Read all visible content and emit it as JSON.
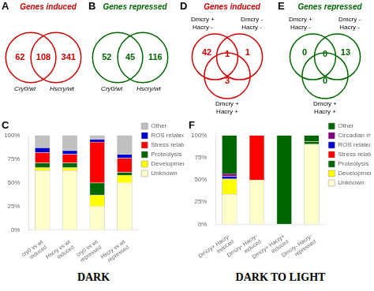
{
  "chart_data": [
    {
      "type": "venn",
      "title": "Genes induced",
      "annotations": [
        "A"
      ],
      "color": "#cc0000",
      "sets": [
        "Cry0/wt",
        "Hscry/wt"
      ],
      "values": [
        62,
        108,
        341
      ]
    },
    {
      "type": "venn",
      "title": "Genes repressed",
      "annotations": [
        "B"
      ],
      "color": "#006600",
      "sets": [
        "Cry0/wt",
        "Hscry/wt"
      ],
      "values": [
        52,
        45,
        116
      ]
    },
    {
      "type": "venn",
      "title": "Genes induced",
      "annotations": [
        "D"
      ],
      "color": "#cc0000",
      "sets": [
        "Dmcry +\nHacry -",
        "Dmcry -\nHacry -",
        "Dmcry +\nHacry +"
      ],
      "values": [
        42,
        1,
        1,
        3
      ]
    },
    {
      "type": "venn",
      "title": "Genes repressed",
      "annotations": [
        "E"
      ],
      "color": "#006600",
      "sets": [
        "Dmcry +\nHacry -",
        "Dmcry -\nHacry -",
        "Dmcry +\nHacry +"
      ],
      "values": [
        0,
        0,
        13,
        0
      ]
    },
    {
      "type": "bar",
      "title": "C",
      "annotations": [
        "DARK"
      ],
      "stacked": true,
      "grid": false,
      "legend": "upper right",
      "categories": [
        "cry0 vs wt\ninduced",
        "Hscry vs wt\ninduced",
        "cry0 vs wt\nrepressed",
        "Hscry vs wt\nrepressed"
      ],
      "series": [
        {
          "name": "Unknown",
          "color": "#ffffcc",
          "values": [
            63,
            63,
            25,
            50
          ]
        },
        {
          "name": "Development",
          "color": "#ffff00",
          "values": [
            3,
            3,
            12,
            8
          ]
        },
        {
          "name": "Proteolysis",
          "color": "#006600",
          "values": [
            5,
            5,
            13,
            3
          ]
        },
        {
          "name": "Stress related",
          "color": "#ff0000",
          "values": [
            11,
            9,
            43,
            15
          ]
        },
        {
          "name": "ROS related",
          "color": "#0000cc",
          "values": [
            5,
            4,
            3,
            4
          ]
        },
        {
          "name": "Other",
          "color": "#c0c0c0",
          "values": [
            13,
            16,
            4,
            20
          ]
        }
      ],
      "ylim": [
        0,
        100
      ],
      "yticks": [
        {
          "value": 0,
          "label": "0%"
        },
        {
          "value": 25,
          "label": "25%"
        },
        {
          "value": 50,
          "label": "50%"
        },
        {
          "value": 75,
          "label": "75%"
        },
        {
          "value": 100,
          "label": "100%"
        }
      ]
    },
    {
      "type": "bar",
      "title": "F",
      "annotations": [
        "DARK TO LIGHT"
      ],
      "stacked": true,
      "grid": false,
      "legend": "upper right",
      "categories": [
        "Dmcry+ Hacry-\ninduced",
        "Dmcry- Hacry-\ninduced",
        "Dmcry+ Hacry+\ninduced",
        "Dmcry- Hacry-\nrepressed"
      ],
      "series": [
        {
          "name": "Unknown",
          "color": "#ffffcc",
          "values": [
            34,
            50,
            0,
            90
          ]
        },
        {
          "name": "Development",
          "color": "#ffff00",
          "values": [
            17,
            0,
            0,
            0
          ]
        },
        {
          "name": "Proteolysis",
          "color": "#006600",
          "values": [
            0,
            0,
            0,
            3
          ]
        },
        {
          "name": "Stress related",
          "color": "#ff0000",
          "values": [
            0,
            50,
            0,
            0
          ]
        },
        {
          "name": "ROS related",
          "color": "#0000cc",
          "values": [
            3,
            0,
            0,
            0
          ]
        },
        {
          "name": "Circadian rhythm",
          "color": "#800080",
          "values": [
            3,
            0,
            0,
            0
          ]
        },
        {
          "name": "Other",
          "color": "#006600",
          "values": [
            43,
            0,
            100,
            7
          ]
        }
      ],
      "ylim": [
        0,
        100
      ],
      "yticks": [
        {
          "value": 0,
          "label": "0%"
        },
        {
          "value": 25,
          "label": "25%"
        },
        {
          "value": 50,
          "label": "50%"
        },
        {
          "value": 75,
          "label": "75%"
        },
        {
          "value": 100,
          "label": "100%"
        }
      ]
    }
  ]
}
